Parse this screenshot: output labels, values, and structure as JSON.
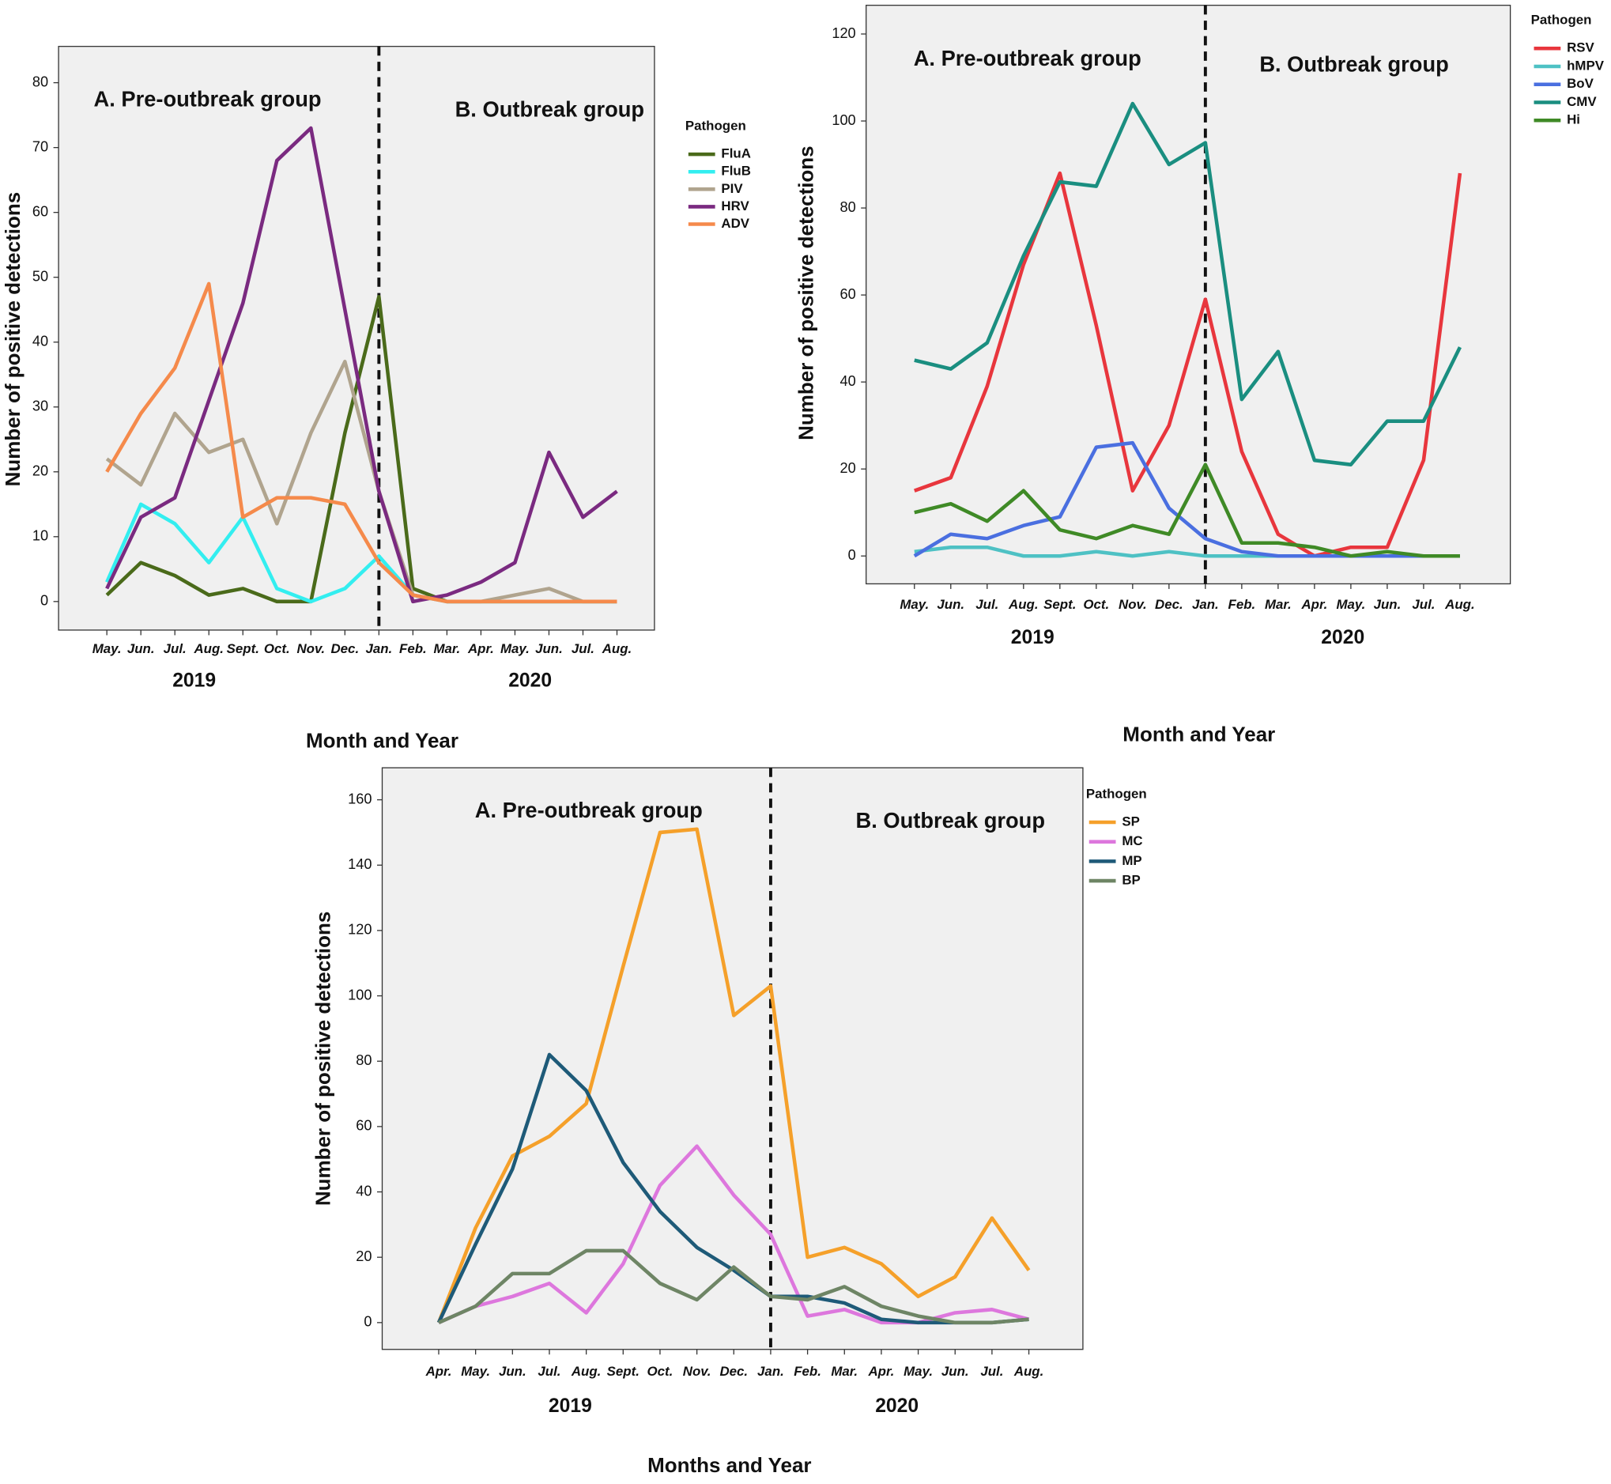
{
  "chart_data": [
    {
      "type": "line",
      "categories": [
        "May.",
        "Jun.",
        "Jul.",
        "Aug.",
        "Sept.",
        "Oct.",
        "Nov.",
        "Dec.",
        "Jan.",
        "Feb.",
        "Mar.",
        "Apr.",
        "May.",
        "Jun.",
        "Jul.",
        "Aug."
      ],
      "years": [
        "2019",
        "2020"
      ],
      "annotations": [
        "A. Pre-outbreak group",
        "B. Outbreak group"
      ],
      "x_label": "Month and Year",
      "y_label": "Number of positive detections",
      "legend_title": "Pathogen",
      "ylim": [
        -4.4,
        85.6
      ],
      "yticks": [
        0,
        10,
        20,
        30,
        40,
        50,
        60,
        70,
        80
      ],
      "series": [
        {
          "name": "FluA",
          "color": "#4a6a1a",
          "values": [
            1,
            6,
            4,
            1,
            2,
            0,
            0,
            26,
            47,
            2,
            0,
            0,
            0,
            0,
            0,
            0
          ]
        },
        {
          "name": "FluB",
          "color": "#33eef0",
          "values": [
            3,
            15,
            12,
            6,
            13,
            2,
            0,
            2,
            7,
            1,
            0,
            0,
            0,
            0,
            0,
            0
          ]
        },
        {
          "name": "PIV",
          "color": "#b0a48e",
          "values": [
            22,
            18,
            29,
            23,
            25,
            12,
            26,
            37,
            17,
            1,
            0,
            0,
            1,
            2,
            0,
            0
          ]
        },
        {
          "name": "HRV",
          "color": "#7a2a80",
          "values": [
            2,
            13,
            16,
            31,
            46,
            68,
            73,
            45,
            17,
            0,
            1,
            3,
            6,
            23,
            13,
            17
          ]
        },
        {
          "name": "ADV",
          "color": "#f58a4b",
          "values": [
            20,
            29,
            36,
            49,
            13,
            16,
            16,
            15,
            6,
            1,
            0,
            0,
            0,
            0,
            0,
            0
          ]
        }
      ]
    },
    {
      "type": "line",
      "categories": [
        "May.",
        "Jun.",
        "Jul.",
        "Aug.",
        "Sept.",
        "Oct.",
        "Nov.",
        "Dec.",
        "Jan.",
        "Feb.",
        "Mar.",
        "Apr.",
        "May.",
        "Jun.",
        "Jul.",
        "Aug."
      ],
      "years": [
        "2019",
        "2020"
      ],
      "annotations": [
        "A. Pre-outbreak group",
        "B. Outbreak group"
      ],
      "x_label": "Month and Year",
      "y_label": "Number of positive detections",
      "legend_title": "Pathogen",
      "ylim": [
        -6.4,
        126.6
      ],
      "yticks": [
        0,
        20,
        40,
        60,
        80,
        100,
        120
      ],
      "series": [
        {
          "name": "RSV",
          "color": "#e8363d",
          "values": [
            15,
            18,
            39,
            67,
            88,
            53,
            15,
            30,
            59,
            24,
            5,
            0,
            2,
            2,
            22,
            88
          ]
        },
        {
          "name": "hMPV",
          "color": "#4ec1c4",
          "values": [
            1,
            2,
            2,
            0,
            0,
            1,
            0,
            1,
            0,
            0,
            0,
            0,
            0,
            0,
            0,
            0
          ]
        },
        {
          "name": "BoV",
          "color": "#4a6fe0",
          "values": [
            0,
            5,
            4,
            7,
            9,
            25,
            26,
            11,
            4,
            1,
            0,
            0,
            0,
            0,
            0,
            0
          ]
        },
        {
          "name": "CMV",
          "color": "#1a8e80",
          "values": [
            45,
            43,
            49,
            69,
            86,
            85,
            104,
            90,
            95,
            36,
            47,
            22,
            21,
            31,
            31,
            48
          ]
        },
        {
          "name": "Hi",
          "color": "#3f8a26",
          "values": [
            10,
            12,
            8,
            15,
            6,
            4,
            7,
            5,
            21,
            3,
            3,
            2,
            0,
            1,
            0,
            0
          ]
        }
      ]
    },
    {
      "type": "line",
      "categories": [
        "Apr.",
        "May.",
        "Jun.",
        "Jul.",
        "Aug.",
        "Sept.",
        "Oct.",
        "Nov.",
        "Dec.",
        "Jan.",
        "Feb.",
        "Mar.",
        "Apr.",
        "May.",
        "Jun.",
        "Jul.",
        "Aug."
      ],
      "years": [
        "2019",
        "2020"
      ],
      "annotations": [
        "A. Pre-outbreak group",
        "B. Outbreak group"
      ],
      "x_label": "Months and Year",
      "y_label": "Number of positive detections",
      "legend_title": "Pathogen",
      "ylim": [
        -8.2,
        169.8
      ],
      "yticks": [
        0,
        20,
        40,
        60,
        80,
        100,
        120,
        140,
        160
      ],
      "series": [
        {
          "name": "SP",
          "color": "#f5a02a",
          "values": [
            0,
            29,
            51,
            57,
            67,
            109,
            150,
            151,
            94,
            103,
            20,
            23,
            18,
            8,
            14,
            32,
            16
          ]
        },
        {
          "name": "MC",
          "color": "#dd77dd",
          "values": [
            0,
            5,
            8,
            12,
            3,
            18,
            42,
            54,
            39,
            27,
            2,
            4,
            0,
            0,
            3,
            4,
            1
          ]
        },
        {
          "name": "MP",
          "color": "#1e5a78",
          "values": [
            0,
            24,
            47,
            82,
            71,
            49,
            34,
            23,
            16,
            8,
            8,
            6,
            1,
            0,
            0,
            0,
            1
          ]
        },
        {
          "name": "BP",
          "color": "#6e8565",
          "values": [
            0,
            5,
            15,
            15,
            22,
            22,
            12,
            7,
            17,
            8,
            7,
            11,
            5,
            2,
            0,
            0,
            1
          ]
        }
      ]
    }
  ]
}
